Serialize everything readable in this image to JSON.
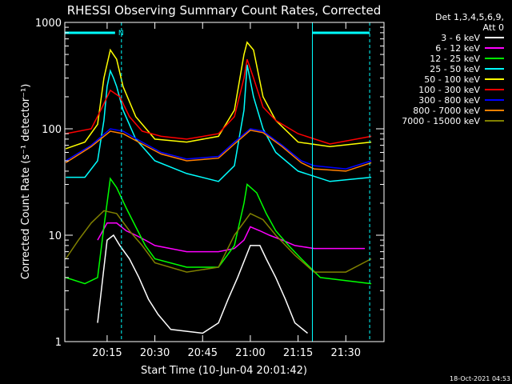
{
  "chart_data": {
    "type": "line",
    "title": "RHESSI Observing Summary Count Rates, Corrected",
    "xlabel": "Start Time (10-Jun-04 20:01:42)",
    "ylabel": "Corrected Count Rate (s⁻¹ detector⁻¹)",
    "footer": "18-Oct-2021 04:53",
    "legend_placement": "right",
    "legend_header": [
      "Det 1,3,4,5,6,9,",
      "Att 0"
    ],
    "x_start": "2004-06-10 20:01:42",
    "xlim": [
      "2004-06-10 20:01:42",
      "2004-06-10 21:42:00"
    ],
    "x_ticks": [
      "20:15",
      "20:30",
      "20:45",
      "21:00",
      "21:15",
      "21:30"
    ],
    "y_scale": "log",
    "ylim": [
      1,
      1000
    ],
    "y_ticks": [
      "1",
      "10",
      "100",
      "1000"
    ],
    "cyan_bars": [
      {
        "from": "2004-06-10 20:01:42",
        "to": "2004-06-10 20:17:30",
        "label": "N"
      },
      {
        "from": "2004-06-10 21:19:30",
        "to": "2004-06-10 21:37:30",
        "label": ""
      }
    ],
    "solid_vlines": [
      "2004-06-10 20:01:42",
      "2004-06-10 21:19:30"
    ],
    "dashed_vlines": [
      "2004-06-10 20:19:30",
      "2004-06-10 21:37:30"
    ],
    "series": [
      {
        "name": "3 - 6 keV",
        "color": "#ffffff",
        "x": [
          "2004-06-10 20:12:00",
          "2004-06-10 20:15:00",
          "2004-06-10 20:17:00",
          "2004-06-10 20:19:00",
          "2004-06-10 20:22:00",
          "2004-06-10 20:25:00",
          "2004-06-10 20:28:00",
          "2004-06-10 20:31:00",
          "2004-06-10 20:35:00",
          "2004-06-10 20:45:00",
          "2004-06-10 20:50:00",
          "2004-06-10 20:53:00",
          "2004-06-10 20:56:00",
          "2004-06-10 21:00:00",
          "2004-06-10 21:03:00",
          "2004-06-10 21:05:00",
          "2004-06-10 21:08:00",
          "2004-06-10 21:11:00",
          "2004-06-10 21:14:00",
          "2004-06-10 21:18:00"
        ],
        "y": [
          1.5,
          9,
          10,
          8,
          6,
          4,
          2.5,
          1.8,
          1.3,
          1.2,
          1.5,
          2.5,
          4,
          8,
          8,
          6,
          4,
          2.5,
          1.5,
          1.2
        ]
      },
      {
        "name": "6 - 12 keV",
        "color": "#ff00ff",
        "x": [
          "2004-06-10 20:12:00",
          "2004-06-10 20:15:00",
          "2004-06-10 20:18:00",
          "2004-06-10 20:21:00",
          "2004-06-10 20:24:00",
          "2004-06-10 20:27:00",
          "2004-06-10 20:30:00",
          "2004-06-10 20:40:00",
          "2004-06-10 20:50:00",
          "2004-06-10 20:55:00",
          "2004-06-10 20:58:00",
          "2004-06-10 21:00:00",
          "2004-06-10 21:03:00",
          "2004-06-10 21:06:00",
          "2004-06-10 21:10:00",
          "2004-06-10 21:14:00",
          "2004-06-10 21:20:00",
          "2004-06-10 21:30:00",
          "2004-06-10 21:36:00"
        ],
        "y": [
          9,
          13,
          13,
          11,
          10,
          9,
          8,
          7,
          7,
          7.5,
          9,
          12,
          11,
          10,
          9,
          8,
          7.5,
          7.5,
          7.5
        ]
      },
      {
        "name": "12 - 25 keV",
        "color": "#00ff00",
        "x": [
          "2004-06-10 20:02:00",
          "2004-06-10 20:08:00",
          "2004-06-10 20:12:00",
          "2004-06-10 20:14:00",
          "2004-06-10 20:16:00",
          "2004-06-10 20:18:00",
          "2004-06-10 20:21:00",
          "2004-06-10 20:24:00",
          "2004-06-10 20:27:00",
          "2004-06-10 20:30:00",
          "2004-06-10 20:40:00",
          "2004-06-10 20:50:00",
          "2004-06-10 20:55:00",
          "2004-06-10 20:58:00",
          "2004-06-10 20:59:00",
          "2004-06-10 21:02:00",
          "2004-06-10 21:05:00",
          "2004-06-10 21:08:00",
          "2004-06-10 21:12:00",
          "2004-06-10 21:16:00",
          "2004-06-10 21:22:00",
          "2004-06-10 21:38:00"
        ],
        "y": [
          4,
          3.5,
          4,
          12,
          34,
          28,
          18,
          12,
          8,
          6,
          5,
          5,
          8,
          20,
          30,
          25,
          16,
          11,
          8,
          6,
          4,
          3.5
        ]
      },
      {
        "name": "25 - 50 keV",
        "color": "#00ffff",
        "x": [
          "2004-06-10 20:02:00",
          "2004-06-10 20:08:00",
          "2004-06-10 20:12:00",
          "2004-06-10 20:14:00",
          "2004-06-10 20:15:00",
          "2004-06-10 20:16:00",
          "2004-06-10 20:17:00",
          "2004-06-10 20:18:00",
          "2004-06-10 20:20:00",
          "2004-06-10 20:24:00",
          "2004-06-10 20:30:00",
          "2004-06-10 20:40:00",
          "2004-06-10 20:50:00",
          "2004-06-10 20:55:00",
          "2004-06-10 20:58:00",
          "2004-06-10 20:59:00",
          "2004-06-10 21:01:00",
          "2004-06-10 21:04:00",
          "2004-06-10 21:08:00",
          "2004-06-10 21:15:00",
          "2004-06-10 21:25:00",
          "2004-06-10 21:38:00"
        ],
        "y": [
          35,
          35,
          50,
          120,
          250,
          350,
          300,
          250,
          150,
          80,
          50,
          38,
          32,
          45,
          150,
          400,
          200,
          100,
          60,
          40,
          32,
          35
        ]
      },
      {
        "name": "50 - 100 keV",
        "color": "#ffff00",
        "x": [
          "2004-06-10 20:02:00",
          "2004-06-10 20:08:00",
          "2004-06-10 20:12:00",
          "2004-06-10 20:14:00",
          "2004-06-10 20:16:00",
          "2004-06-10 20:18:00",
          "2004-06-10 20:20:00",
          "2004-06-10 20:24:00",
          "2004-06-10 20:30:00",
          "2004-06-10 20:40:00",
          "2004-06-10 20:50:00",
          "2004-06-10 20:55:00",
          "2004-06-10 20:58:00",
          "2004-06-10 20:59:00",
          "2004-06-10 21:01:00",
          "2004-06-10 21:04:00",
          "2004-06-10 21:08:00",
          "2004-06-10 21:15:00",
          "2004-06-10 21:25:00",
          "2004-06-10 21:38:00"
        ],
        "y": [
          65,
          75,
          110,
          300,
          550,
          450,
          250,
          130,
          80,
          75,
          85,
          150,
          500,
          650,
          550,
          200,
          120,
          75,
          68,
          75
        ]
      },
      {
        "name": "100 - 300 keV",
        "color": "#ff0000",
        "x": [
          "2004-06-10 20:02:00",
          "2004-06-10 20:10:00",
          "2004-06-10 20:13:00",
          "2004-06-10 20:16:00",
          "2004-06-10 20:19:00",
          "2004-06-10 20:22:00",
          "2004-06-10 20:26:00",
          "2004-06-10 20:32:00",
          "2004-06-10 20:40:00",
          "2004-06-10 20:50:00",
          "2004-06-10 20:55:00",
          "2004-06-10 20:58:00",
          "2004-06-10 20:59:00",
          "2004-06-10 21:01:00",
          "2004-06-10 21:04:00",
          "2004-06-10 21:08:00",
          "2004-06-10 21:15:00",
          "2004-06-10 21:25:00",
          "2004-06-10 21:38:00"
        ],
        "y": [
          90,
          100,
          150,
          230,
          200,
          130,
          95,
          85,
          80,
          90,
          130,
          300,
          450,
          300,
          160,
          120,
          90,
          72,
          85
        ]
      },
      {
        "name": "300 - 800 keV",
        "color": "#0000ff",
        "x": [
          "2004-06-10 20:02:00",
          "2004-06-10 20:10:00",
          "2004-06-10 20:16:00",
          "2004-06-10 20:20:00",
          "2004-06-10 20:26:00",
          "2004-06-10 20:32:00",
          "2004-06-10 20:40:00",
          "2004-06-10 20:50:00",
          "2004-06-10 20:55:00",
          "2004-06-10 21:00:00",
          "2004-06-10 21:04:00",
          "2004-06-10 21:10:00",
          "2004-06-10 21:16:00",
          "2004-06-10 21:20:00",
          "2004-06-10 21:30:00",
          "2004-06-10 21:38:00"
        ],
        "y": [
          50,
          70,
          100,
          95,
          75,
          60,
          52,
          55,
          75,
          100,
          95,
          70,
          50,
          45,
          42,
          50
        ]
      },
      {
        "name": "800 - 7000 keV",
        "color": "#ff8000",
        "x": [
          "2004-06-10 20:02:00",
          "2004-06-10 20:10:00",
          "2004-06-10 20:16:00",
          "2004-06-10 20:20:00",
          "2004-06-10 20:26:00",
          "2004-06-10 20:32:00",
          "2004-06-10 20:40:00",
          "2004-06-10 20:50:00",
          "2004-06-10 20:55:00",
          "2004-06-10 21:00:00",
          "2004-06-10 21:04:00",
          "2004-06-10 21:10:00",
          "2004-06-10 21:16:00",
          "2004-06-10 21:20:00",
          "2004-06-10 21:30:00",
          "2004-06-10 21:38:00"
        ],
        "y": [
          48,
          68,
          95,
          90,
          72,
          58,
          50,
          53,
          72,
          97,
          92,
          68,
          48,
          42,
          40,
          48
        ]
      },
      {
        "name": "7000 - 15000 keV",
        "color": "#808000",
        "x": [
          "2004-06-10 20:02:00",
          "2004-06-10 20:06:00",
          "2004-06-10 20:10:00",
          "2004-06-10 20:14:00",
          "2004-06-10 20:18:00",
          "2004-06-10 20:22:00",
          "2004-06-10 20:26:00",
          "2004-06-10 20:30:00",
          "2004-06-10 20:40:00",
          "2004-06-10 20:50:00",
          "2004-06-10 20:55:00",
          "2004-06-10 21:00:00",
          "2004-06-10 21:04:00",
          "2004-06-10 21:08:00",
          "2004-06-10 21:14:00",
          "2004-06-10 21:20:00",
          "2004-06-10 21:30:00",
          "2004-06-10 21:38:00"
        ],
        "y": [
          6,
          9,
          13,
          17,
          16,
          11,
          8,
          5.5,
          4.5,
          5,
          10,
          16,
          14,
          10,
          6.5,
          4.5,
          4.5,
          6
        ]
      }
    ]
  }
}
